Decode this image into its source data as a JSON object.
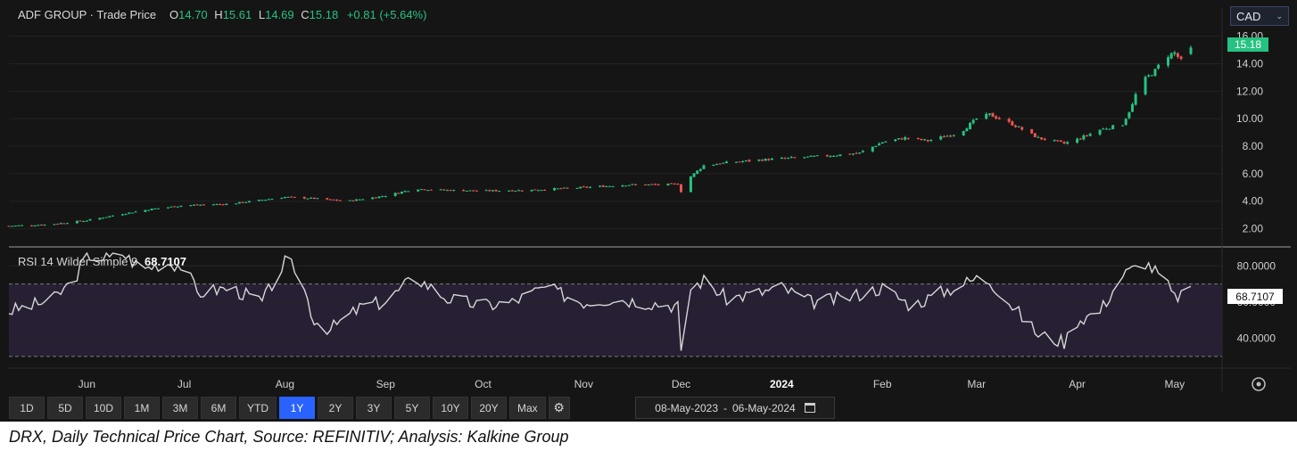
{
  "header": {
    "instrument": "ADF GROUP · Trade Price",
    "o_label": "O",
    "o_value": "14.70",
    "h_label": "H",
    "h_value": "15.61",
    "l_label": "L",
    "l_value": "14.69",
    "c_label": "C",
    "c_value": "15.18",
    "change": "+0.81 (+5.64%)"
  },
  "currency": "CAD",
  "last_price_label": "15.18",
  "rsi": {
    "label": "RSI 14 Wilder Simple 9",
    "value": "68.7107"
  },
  "toolbar": {
    "ranges": [
      "1D",
      "5D",
      "10D",
      "1M",
      "3M",
      "6M",
      "YTD",
      "1Y",
      "2Y",
      "3Y",
      "5Y",
      "10Y",
      "20Y",
      "Max"
    ],
    "active_range": "1Y",
    "date_from": "08-May-2023",
    "date_sep": "-",
    "date_to": "06-May-2024"
  },
  "caption": "DRX, Daily Technical Price Chart, Source: REFINITIV; Analysis: Kalkine Group",
  "colors": {
    "background": "#151515",
    "up": "#26c281",
    "down": "#ef5350",
    "rsi_line": "#d6d6d6",
    "rsi_band": "#271f33",
    "active_range": "#2962ff"
  },
  "chart_data": [
    {
      "type": "candlestick",
      "title": "ADF GROUP · Trade Price",
      "x_start": "2023-05-08",
      "x_end": "2024-05-06",
      "months": [
        "Jun",
        "Jul",
        "Aug",
        "Sep",
        "Oct",
        "Nov",
        "Dec",
        "2024",
        "Feb",
        "Mar",
        "Apr",
        "May"
      ],
      "month_dates": [
        "2023-06-01",
        "2023-07-01",
        "2023-08-01",
        "2023-09-01",
        "2023-10-01",
        "2023-11-01",
        "2023-12-01",
        "2024-01-01",
        "2024-02-01",
        "2024-03-01",
        "2024-04-01",
        "2024-05-01"
      ],
      "yticks": [
        "2.00",
        "4.00",
        "6.00",
        "8.00",
        "10.00",
        "12.00",
        "14.00",
        "16.00"
      ],
      "ylim": [
        1.0,
        16.3
      ],
      "close_anchors": [
        [
          "2023-05-08",
          2.2
        ],
        [
          "2023-05-20",
          2.3
        ],
        [
          "2023-06-01",
          2.6
        ],
        [
          "2023-06-10",
          3.0
        ],
        [
          "2023-06-20",
          3.4
        ],
        [
          "2023-07-01",
          3.7
        ],
        [
          "2023-07-15",
          3.8
        ],
        [
          "2023-08-01",
          4.3
        ],
        [
          "2023-08-10",
          4.2
        ],
        [
          "2023-08-20",
          4.0
        ],
        [
          "2023-09-01",
          4.4
        ],
        [
          "2023-09-10",
          4.9
        ],
        [
          "2023-09-20",
          4.8
        ],
        [
          "2023-10-01",
          4.75
        ],
        [
          "2023-10-15",
          4.8
        ],
        [
          "2023-11-01",
          5.0
        ],
        [
          "2023-11-15",
          5.2
        ],
        [
          "2023-11-25",
          5.2
        ],
        [
          "2023-11-30",
          5.25
        ],
        [
          "2023-12-01",
          4.7
        ],
        [
          "2023-12-04",
          5.8
        ],
        [
          "2023-12-08",
          6.6
        ],
        [
          "2023-12-15",
          6.8
        ],
        [
          "2023-12-25",
          7.0
        ],
        [
          "2024-01-01",
          7.1
        ],
        [
          "2024-01-15",
          7.3
        ],
        [
          "2024-01-25",
          7.5
        ],
        [
          "2024-02-01",
          8.3
        ],
        [
          "2024-02-08",
          8.6
        ],
        [
          "2024-02-15",
          8.4
        ],
        [
          "2024-02-25",
          9.0
        ],
        [
          "2024-03-01",
          10.0
        ],
        [
          "2024-03-05",
          10.3
        ],
        [
          "2024-03-12",
          9.6
        ],
        [
          "2024-03-20",
          8.6
        ],
        [
          "2024-03-28",
          8.2
        ],
        [
          "2024-04-01",
          8.5
        ],
        [
          "2024-04-08",
          9.2
        ],
        [
          "2024-04-15",
          9.6
        ],
        [
          "2024-04-18",
          11.0
        ],
        [
          "2024-04-20",
          12.5
        ],
        [
          "2024-04-25",
          13.5
        ],
        [
          "2024-04-28",
          14.5
        ],
        [
          "2024-05-01",
          14.8
        ],
        [
          "2024-05-03",
          14.2
        ],
        [
          "2024-05-06",
          15.18
        ]
      ],
      "last_ohlc": {
        "open": 14.7,
        "high": 15.61,
        "low": 14.69,
        "close": 15.18
      }
    },
    {
      "type": "line",
      "title": "RSI 14 Wilder Simple 9",
      "yticks": [
        "40.0000",
        "60.0000",
        "80.0000"
      ],
      "ylim": [
        25,
        88
      ],
      "bands": [
        30,
        70
      ],
      "anchors": [
        [
          "2023-05-08",
          55
        ],
        [
          "2023-05-15",
          58
        ],
        [
          "2023-05-22",
          62
        ],
        [
          "2023-05-28",
          72
        ],
        [
          "2023-06-01",
          86
        ],
        [
          "2023-06-08",
          84
        ],
        [
          "2023-06-12",
          87
        ],
        [
          "2023-06-18",
          78
        ],
        [
          "2023-06-25",
          82
        ],
        [
          "2023-07-01",
          80
        ],
        [
          "2023-07-05",
          65
        ],
        [
          "2023-07-15",
          68
        ],
        [
          "2023-07-25",
          60
        ],
        [
          "2023-08-01",
          82
        ],
        [
          "2023-08-05",
          78
        ],
        [
          "2023-08-10",
          50
        ],
        [
          "2023-08-15",
          45
        ],
        [
          "2023-08-25",
          58
        ],
        [
          "2023-09-01",
          60
        ],
        [
          "2023-09-10",
          74
        ],
        [
          "2023-09-20",
          62
        ],
        [
          "2023-10-01",
          58
        ],
        [
          "2023-10-10",
          60
        ],
        [
          "2023-10-20",
          68
        ],
        [
          "2023-11-01",
          60
        ],
        [
          "2023-11-10",
          62
        ],
        [
          "2023-11-20",
          60
        ],
        [
          "2023-11-30",
          58
        ],
        [
          "2023-12-01",
          30
        ],
        [
          "2023-12-04",
          68
        ],
        [
          "2023-12-08",
          72
        ],
        [
          "2023-12-15",
          62
        ],
        [
          "2023-12-25",
          65
        ],
        [
          "2024-01-01",
          68
        ],
        [
          "2024-01-10",
          60
        ],
        [
          "2024-01-20",
          62
        ],
        [
          "2024-02-01",
          68
        ],
        [
          "2024-02-10",
          58
        ],
        [
          "2024-02-20",
          66
        ],
        [
          "2024-03-01",
          73
        ],
        [
          "2024-03-05",
          72
        ],
        [
          "2024-03-12",
          58
        ],
        [
          "2024-03-20",
          42
        ],
        [
          "2024-03-28",
          38
        ],
        [
          "2024-04-01",
          50
        ],
        [
          "2024-04-08",
          55
        ],
        [
          "2024-04-15",
          75
        ],
        [
          "2024-04-22",
          82
        ],
        [
          "2024-04-28",
          72
        ],
        [
          "2024-05-01",
          62
        ],
        [
          "2024-05-06",
          68.7107
        ]
      ]
    }
  ]
}
